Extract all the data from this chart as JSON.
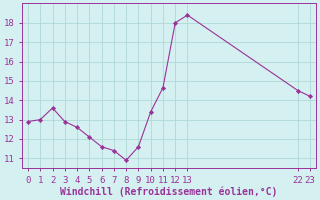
{
  "x": [
    0,
    1,
    2,
    3,
    4,
    5,
    6,
    7,
    8,
    9,
    10,
    11,
    12,
    13,
    22,
    23
  ],
  "y": [
    12.9,
    13.0,
    13.6,
    12.9,
    12.6,
    12.1,
    11.6,
    11.4,
    10.9,
    11.6,
    13.4,
    14.65,
    18.0,
    18.4,
    14.5,
    14.2
  ],
  "line_color": "#993399",
  "marker_color": "#993399",
  "bg_color": "#d5f0f0",
  "grid_color": "#b0d8d8",
  "xlabel": "Windchill (Refroidissement éolien,°C)",
  "xlim": [
    -0.5,
    23.5
  ],
  "ylim": [
    10.5,
    19.0
  ],
  "xticks": [
    0,
    1,
    2,
    3,
    4,
    5,
    6,
    7,
    8,
    9,
    10,
    11,
    12,
    13,
    22,
    23
  ],
  "yticks": [
    11,
    12,
    13,
    14,
    15,
    16,
    17,
    18
  ],
  "label_color": "#993399",
  "tick_color": "#993399",
  "fontsize_xlabel": 7.0,
  "fontsize_tick": 6.5
}
